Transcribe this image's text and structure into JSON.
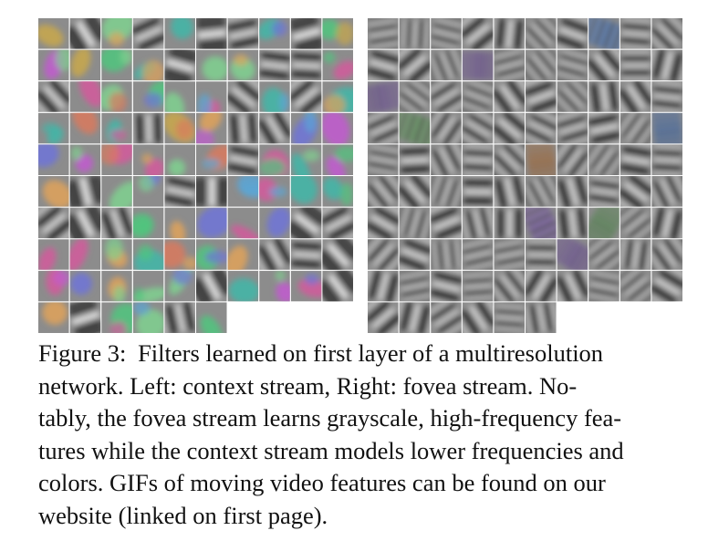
{
  "figure": {
    "panels": [
      {
        "id": "context",
        "stream": "context",
        "grid_rows": 10,
        "grid_cols": 10,
        "filled_in_last_row": 6,
        "character": "low-frequency color blobs",
        "palette": [
          "#c25bd0",
          "#4fc67e",
          "#e0a25a",
          "#5aa6d6",
          "#d45a9c",
          "#7fd18f",
          "#c9a84a",
          "#6e74d8",
          "#3fb7a8",
          "#d97a5e"
        ]
      },
      {
        "id": "fovea",
        "stream": "fovea",
        "grid_rows": 10,
        "grid_cols": 10,
        "filled_in_last_row": 6,
        "character": "grayscale high-frequency gratings",
        "palette": [
          "#5b86c9",
          "#c9874e",
          "#8a6ab8",
          "#6fa86a"
        ]
      }
    ],
    "tile_background": "#8c8c8c",
    "caption": {
      "label": "Figure 3:",
      "line_1": "Filters learned on first layer of a multiresolution",
      "line_2": "network. Left: context stream, Right: fovea stream. No-",
      "line_3": "tably, the fovea stream learns grayscale, high-frequency fea-",
      "line_4": "tures while the context stream models lower frequencies and",
      "line_5": "colors. GIFs of moving video features can be found on our",
      "line_6": "website (linked on first page)."
    }
  }
}
